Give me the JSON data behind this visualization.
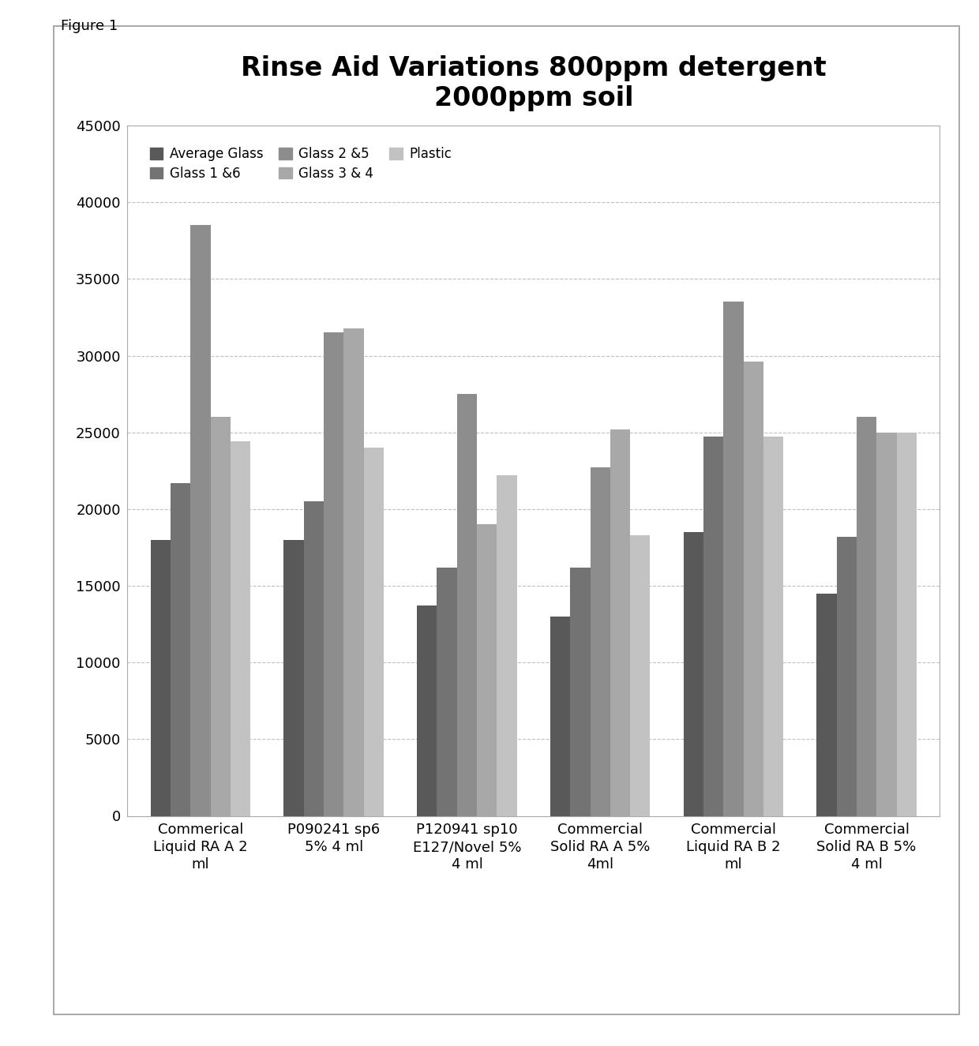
{
  "title": "Rinse Aid Variations 800ppm detergent\n2000ppm soil",
  "figure_label": "Figure 1",
  "categories": [
    "Commerical\nLiquid RA A 2\nml",
    "P090241 sp6\n5% 4 ml",
    "P120941 sp10\nE127/Novel 5%\n4 ml",
    "Commercial\nSolid RA A 5%\n4ml",
    "Commercial\nLiquid RA B 2\nml",
    "Commercial\nSolid RA B 5%\n4 ml"
  ],
  "series": {
    "Average Glass": [
      18000,
      18000,
      13700,
      13000,
      18500,
      14500
    ],
    "Glass 1 &6": [
      21700,
      20500,
      16200,
      16200,
      24700,
      18200
    ],
    "Glass 2 &5": [
      38500,
      31500,
      27500,
      22700,
      33500,
      26000
    ],
    "Glass 3 & 4": [
      26000,
      31800,
      19000,
      25200,
      29600,
      25000
    ],
    "Plastic": [
      24400,
      24000,
      22200,
      18300,
      24700,
      25000
    ]
  },
  "colors": {
    "Average Glass": "#595959",
    "Glass 1 &6": "#737373",
    "Glass 2 &5": "#8d8d8d",
    "Glass 3 & 4": "#a8a8a8",
    "Plastic": "#c2c2c2"
  },
  "ylim": [
    0,
    45000
  ],
  "yticks": [
    0,
    5000,
    10000,
    15000,
    20000,
    25000,
    30000,
    35000,
    40000,
    45000
  ],
  "background_color": "#ffffff",
  "grid_color": "#c0c0c0",
  "title_fontsize": 24,
  "tick_fontsize": 13,
  "legend_fontsize": 12,
  "figsize": [
    12.4,
    13.25
  ],
  "dpi": 100
}
